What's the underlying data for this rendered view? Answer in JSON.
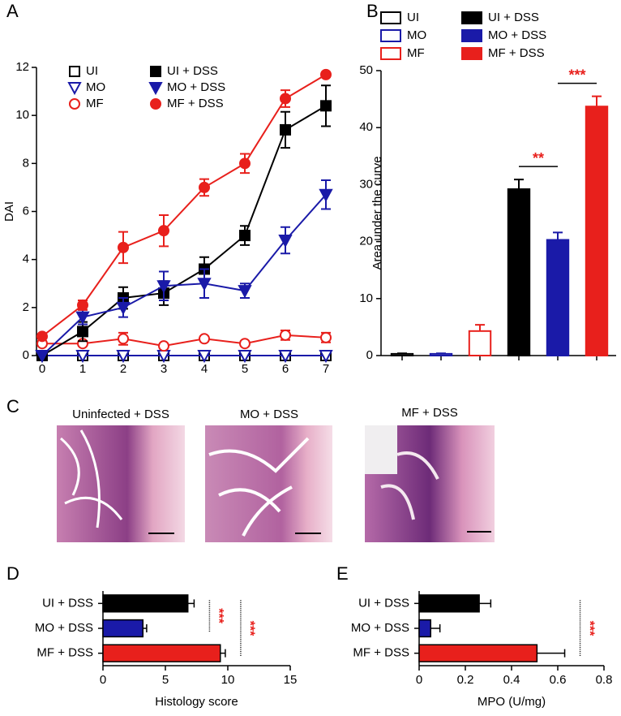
{
  "chart_data": [
    {
      "type": "line",
      "label": "A",
      "ylabel": "DAI",
      "x": [
        0,
        1,
        2,
        3,
        4,
        5,
        6,
        7
      ],
      "xlim": [
        0,
        7
      ],
      "xticks": [
        0,
        1,
        2,
        3,
        4,
        5,
        6,
        7
      ],
      "ylim": [
        0,
        12
      ],
      "yticks": [
        0,
        2,
        4,
        6,
        8,
        10,
        12
      ],
      "series": [
        {
          "name": "UI",
          "color": "#000000",
          "marker": "square",
          "filled": false,
          "values": [
            0,
            0,
            0,
            0,
            0,
            0,
            0,
            0
          ],
          "errors": [
            0,
            0,
            0,
            0,
            0,
            0,
            0,
            0
          ]
        },
        {
          "name": "MO",
          "color": "#1a1aa8",
          "marker": "triangle",
          "filled": false,
          "values": [
            0,
            0,
            0,
            0,
            0,
            0,
            0,
            0
          ],
          "errors": [
            0,
            0,
            0,
            0,
            0,
            0,
            0,
            0
          ]
        },
        {
          "name": "MF",
          "color": "#e8201c",
          "marker": "circle",
          "filled": false,
          "values": [
            0.5,
            0.5,
            0.7,
            0.4,
            0.7,
            0.5,
            0.85,
            0.75
          ],
          "errors": [
            0.1,
            0.1,
            0.25,
            0.1,
            0.1,
            0.1,
            0.2,
            0.2
          ]
        },
        {
          "name": "UI + DSS",
          "color": "#000000",
          "marker": "square",
          "filled": true,
          "values": [
            0,
            1.0,
            2.4,
            2.6,
            3.6,
            5.0,
            9.4,
            10.4
          ],
          "errors": [
            0,
            0.4,
            0.45,
            0.5,
            0.5,
            0.4,
            0.75,
            0.85
          ]
        },
        {
          "name": "MO + DSS",
          "color": "#1a1aa8",
          "marker": "triangle",
          "filled": true,
          "values": [
            0,
            1.6,
            2.0,
            2.9,
            3.0,
            2.7,
            4.8,
            6.7
          ],
          "errors": [
            0,
            0.3,
            0.4,
            0.6,
            0.6,
            0.3,
            0.55,
            0.6
          ]
        },
        {
          "name": "MF + DSS",
          "color": "#e8201c",
          "marker": "circle",
          "filled": true,
          "values": [
            0.8,
            2.1,
            4.5,
            5.2,
            7.0,
            8.0,
            10.7,
            11.7
          ],
          "errors": [
            0,
            0.2,
            0.65,
            0.65,
            0.35,
            0.4,
            0.35,
            0.1
          ]
        }
      ]
    },
    {
      "type": "bar",
      "label": "B",
      "ylabel": "Area under the curve",
      "categories": [
        null,
        null,
        null,
        null,
        null,
        null
      ],
      "series_names": [
        "UI",
        "MO",
        "MF",
        "UI + DSS",
        "MO + DSS",
        "MF + DSS"
      ],
      "values": [
        0.3,
        0.3,
        4.3,
        29.2,
        20.3,
        43.7
      ],
      "errors": [
        0.1,
        0.1,
        1.1,
        1.7,
        1.3,
        1.8
      ],
      "colors": [
        "#000000",
        "#1a1aa8",
        "#e8201c",
        "#000000",
        "#1a1aa8",
        "#e8201c"
      ],
      "filled": [
        false,
        false,
        false,
        true,
        true,
        true
      ],
      "ylim": [
        0,
        50
      ],
      "yticks": [
        0,
        10,
        20,
        30,
        40,
        50
      ],
      "annotations": [
        {
          "text": "**",
          "between": [
            3,
            4
          ]
        },
        {
          "text": "***",
          "between": [
            4,
            5
          ]
        }
      ]
    },
    {
      "type": "hbar",
      "label": "D",
      "xlabel": "Histology score",
      "categories": [
        "UI + DSS",
        "MO + DSS",
        "MF + DSS"
      ],
      "values": [
        6.8,
        3.2,
        9.4
      ],
      "errors": [
        0.5,
        0.3,
        0.4
      ],
      "colors": [
        "#000000",
        "#1a1aa8",
        "#e8201c"
      ],
      "xlim": [
        0,
        15
      ],
      "xticks": [
        0,
        5,
        10,
        15
      ],
      "annotations": [
        {
          "text": "***",
          "between": [
            0,
            1
          ]
        },
        {
          "text": "***",
          "between": [
            0,
            2
          ]
        }
      ]
    },
    {
      "type": "hbar",
      "label": "E",
      "xlabel": "MPO (U/mg)",
      "categories": [
        "UI + DSS",
        "MO + DSS",
        "MF + DSS"
      ],
      "values": [
        0.26,
        0.05,
        0.51
      ],
      "errors": [
        0.05,
        0.04,
        0.12
      ],
      "colors": [
        "#000000",
        "#1a1aa8",
        "#e8201c"
      ],
      "xlim": [
        0,
        0.8
      ],
      "xticks": [
        0,
        0.2,
        0.4,
        0.6,
        0.8
      ],
      "annotations": [
        {
          "text": "***",
          "between": [
            0,
            2
          ]
        }
      ]
    }
  ],
  "images": {
    "label": "C",
    "captions": [
      "Uninfected + DSS",
      "MO + DSS",
      "MF + DSS"
    ]
  }
}
